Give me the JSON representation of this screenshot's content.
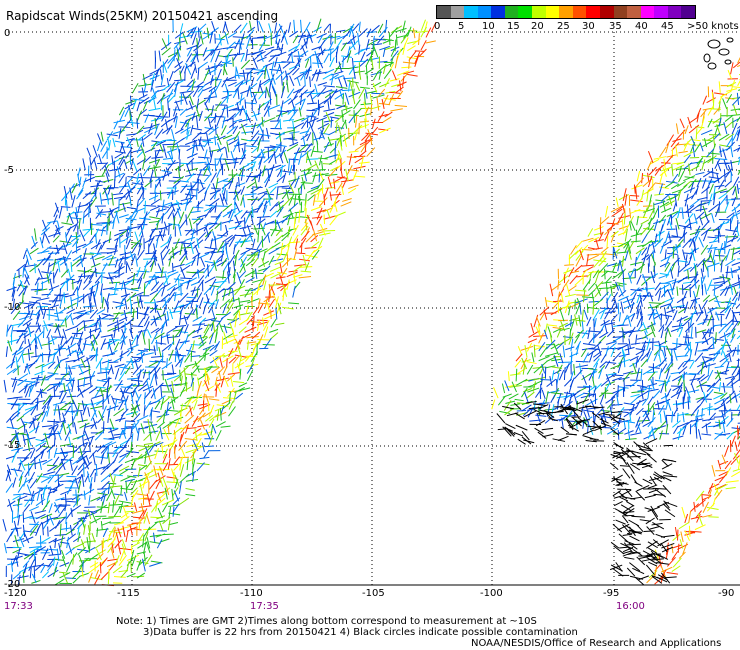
{
  "title": "Rapidscat Winds(25KM) 20150421 ascending",
  "colorbar": {
    "labels": [
      "0",
      "5",
      "10",
      "15",
      "20",
      "25",
      "30",
      "35",
      "40",
      "45",
      ">50 knots"
    ],
    "colors": [
      "#555555",
      "#a0a0a0",
      "#00c0ff",
      "#0090ff",
      "#0030e0",
      "#20b020",
      "#00e000",
      "#c0ff00",
      "#ffff00",
      "#ffa000",
      "#ff5000",
      "#ff0000",
      "#b00000",
      "#904020",
      "#c06040",
      "#ff00ff",
      "#c000ff",
      "#8000c0",
      "#500090"
    ]
  },
  "axes": {
    "lon_labels": [
      "-120",
      "-115",
      "-110",
      "-105",
      "-100",
      "-95",
      "-90"
    ],
    "lat_labels": [
      "0",
      "-5",
      "-10",
      "-15",
      "-20"
    ]
  },
  "times": [
    "17:33",
    "17:35",
    "16:00"
  ],
  "notes": [
    "Note: 1) Times are GMT 2)Times along bottom correspond to measurement at ~10S",
    "3)Data buffer is 22 hrs from 20150421 4) Black circles indicate possible contamination",
    "NOAA/NESDIS/Office of Research and Applications"
  ]
}
